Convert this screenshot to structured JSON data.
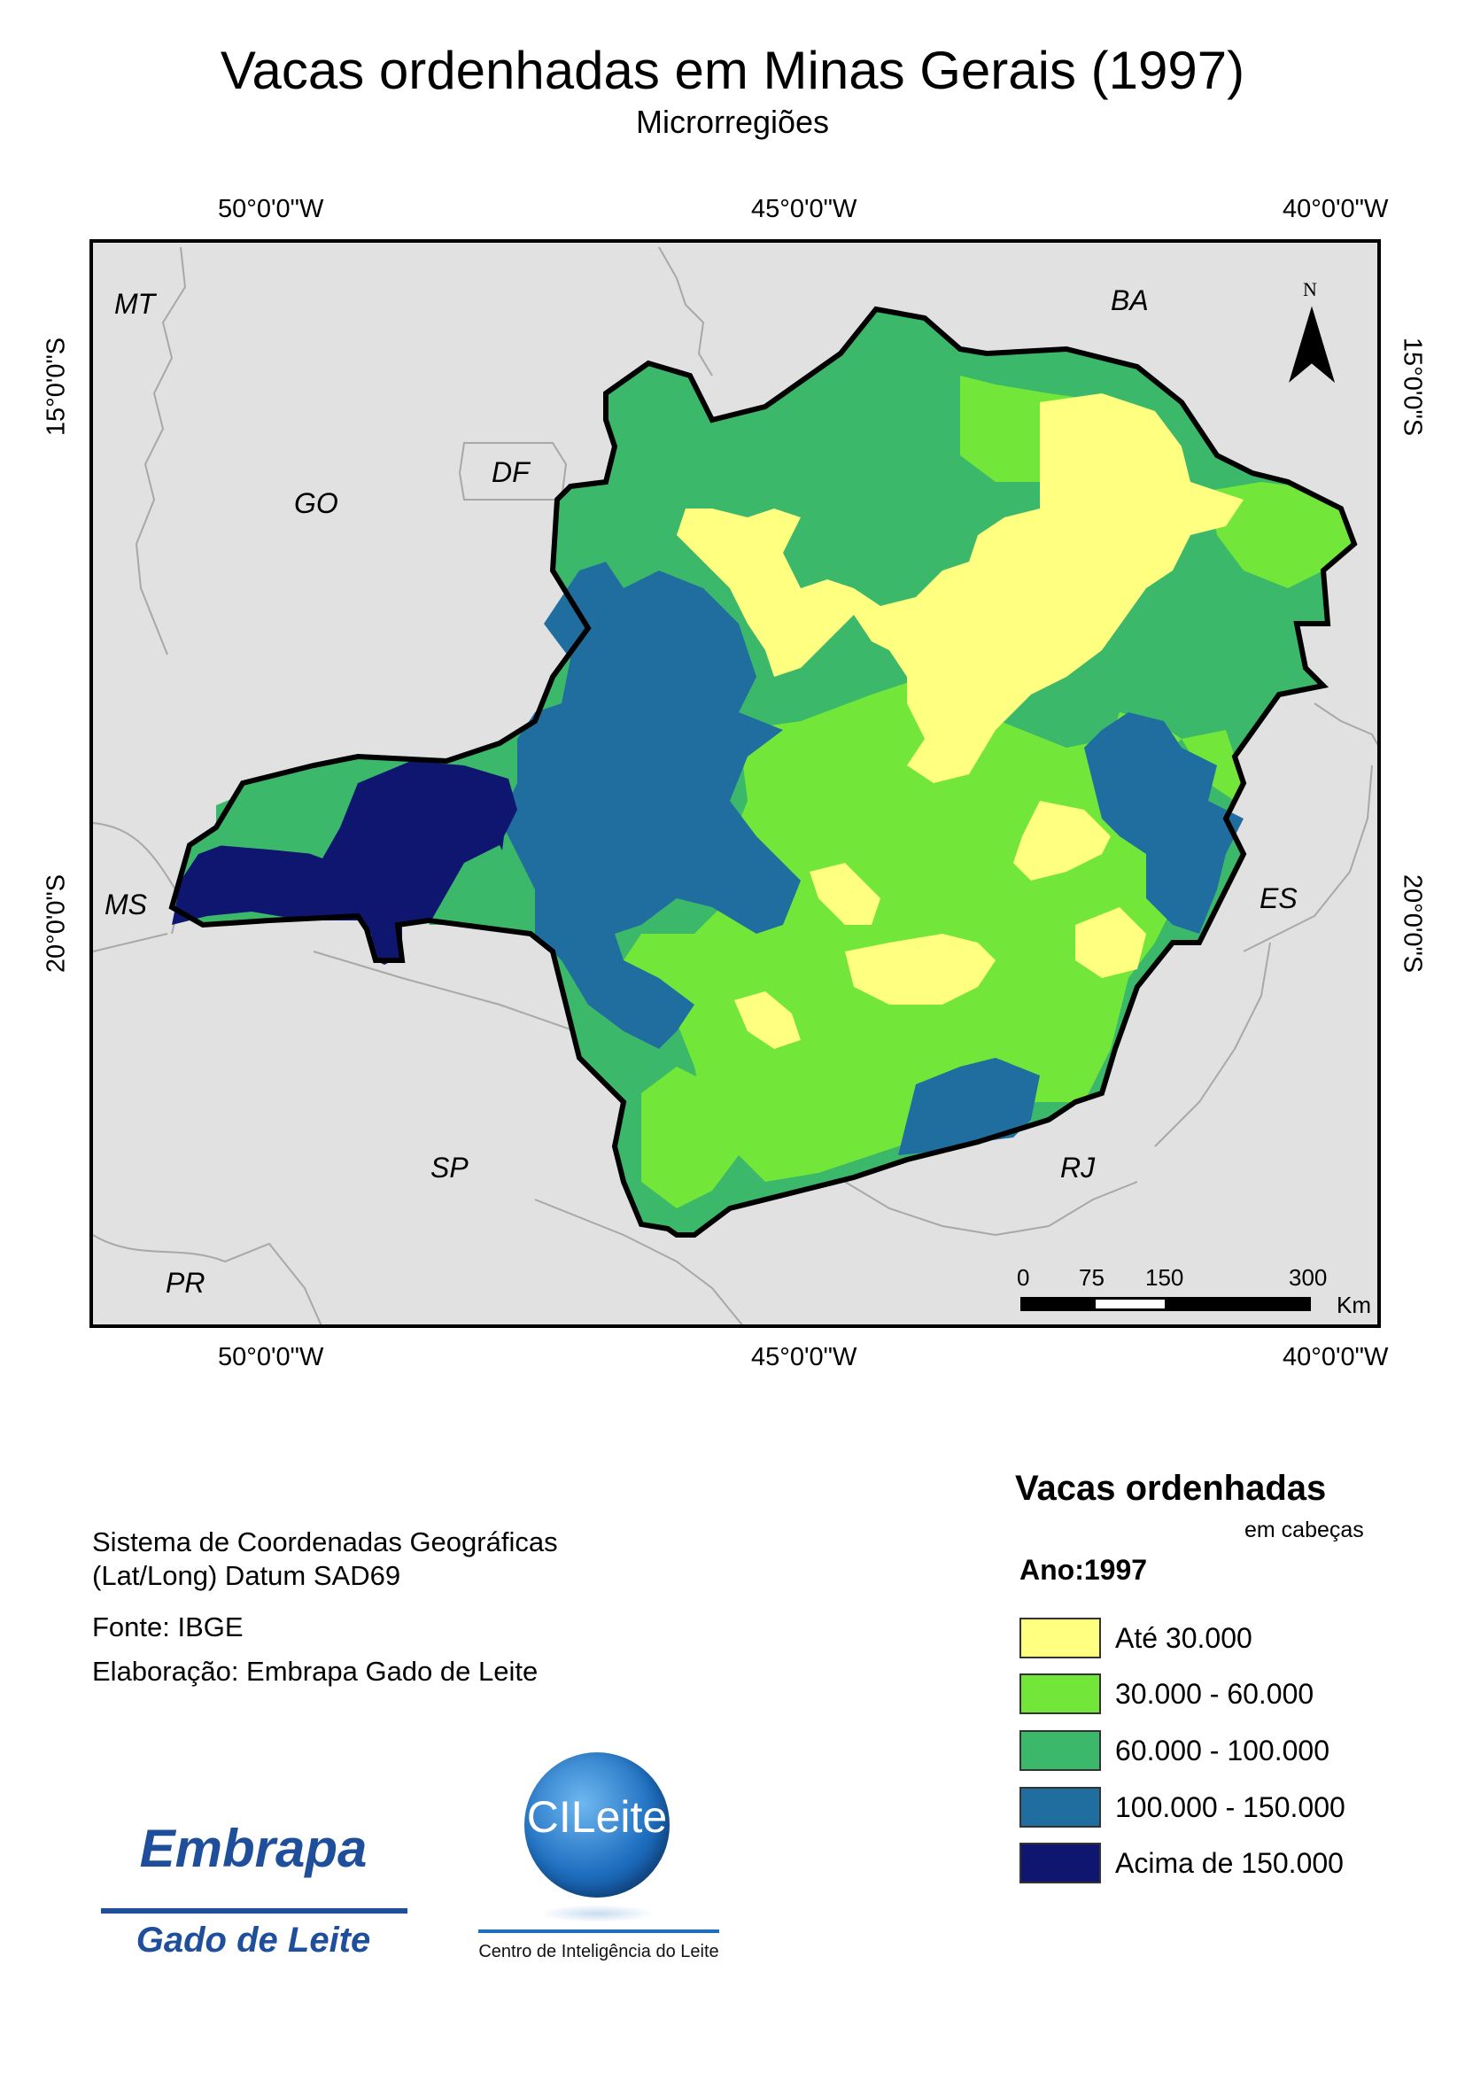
{
  "header": {
    "title": "Vacas ordenhadas em Minas Gerais (1997)",
    "subtitle": "Microrregiões"
  },
  "map": {
    "longitude_labels": [
      "50°0'0\"W",
      "45°0'0\"W",
      "40°0'0\"W"
    ],
    "latitude_labels": [
      "15°0'0\"S",
      "20°0'0\"S"
    ],
    "state_labels": [
      "MT",
      "BA",
      "GO",
      "DF",
      "MS",
      "ES",
      "SP",
      "RJ",
      "PR"
    ],
    "north_arrow_label": "N",
    "scale_bar": {
      "ticks": [
        "0",
        "75",
        "150",
        "300"
      ],
      "unit": "Km"
    },
    "colors": {
      "background": "#e1e1e1",
      "class_1": "#ffff80",
      "class_2": "#73e63a",
      "class_3": "#3cb86a",
      "class_4": "#206ea0",
      "class_5": "#0e1670"
    }
  },
  "notes": {
    "crs_line1": "Sistema de Coordenadas Geográficas",
    "crs_line2": "(Lat/Long) Datum SAD69",
    "source": "Fonte: IBGE",
    "author": "Elaboração: Embrapa Gado de Leite"
  },
  "legend": {
    "title": "Vacas ordenhadas",
    "subtitle": "em cabeças",
    "year": "Ano:1997",
    "items": [
      {
        "label": "Até 30.000",
        "color": "#ffff80"
      },
      {
        "label": "30.000 - 60.000",
        "color": "#73e63a"
      },
      {
        "label": "60.000 - 100.000",
        "color": "#3cb86a"
      },
      {
        "label": "100.000 - 150.000",
        "color": "#206ea0"
      },
      {
        "label": "Acima de 150.000",
        "color": "#0e1670"
      }
    ]
  },
  "logos": {
    "embrapa_word": "Embrapa",
    "embrapa_sub": "Gado de Leite",
    "cileite_word": "CILeite",
    "cileite_caption": "Centro de Inteligência do Leite"
  }
}
